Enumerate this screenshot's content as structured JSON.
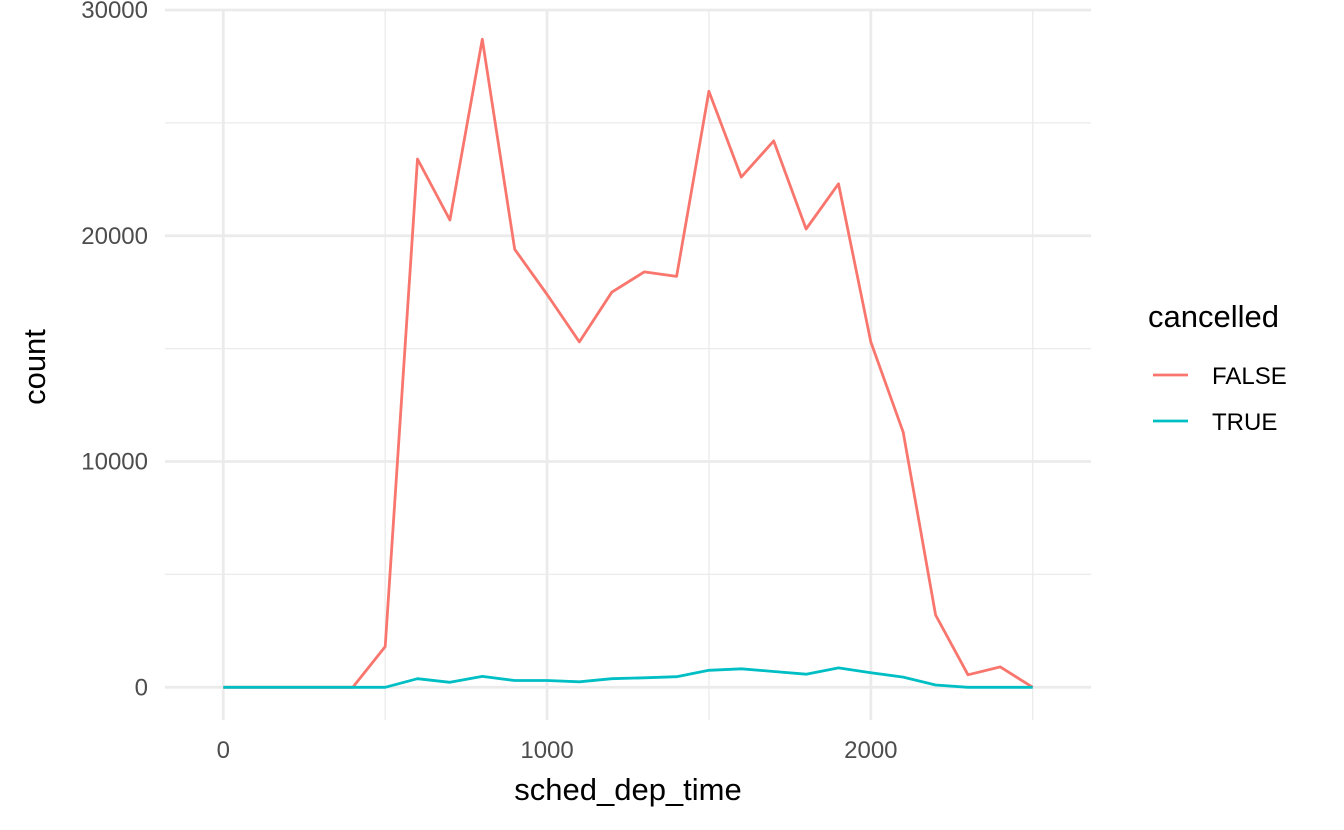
{
  "chart_data": {
    "type": "line",
    "xlabel": "sched_dep_time",
    "ylabel": "count",
    "xlim": [
      -180,
      2680
    ],
    "ylim": [
      -1450,
      30000
    ],
    "x_ticks": [
      0,
      1000,
      2000
    ],
    "x_tick_labels": [
      "0",
      "1000",
      "2000"
    ],
    "x_minor_ticks": [
      500,
      1500,
      2500
    ],
    "y_ticks": [
      0,
      10000,
      20000,
      30000
    ],
    "y_tick_labels": [
      "0",
      "10000",
      "20000",
      "30000"
    ],
    "y_minor_ticks": [
      5000,
      15000,
      25000
    ],
    "grid": true,
    "legend": {
      "title": "cancelled",
      "position": "right"
    },
    "x": [
      0,
      100,
      200,
      300,
      400,
      500,
      600,
      700,
      800,
      900,
      1000,
      1100,
      1200,
      1300,
      1400,
      1500,
      1600,
      1700,
      1800,
      1900,
      2000,
      2100,
      2200,
      2300,
      2400,
      2500
    ],
    "series": [
      {
        "name": "FALSE",
        "color": "#F8766D",
        "values": [
          0,
          0,
          0,
          0,
          0,
          1800,
          23400,
          20700,
          28700,
          19400,
          17400,
          15300,
          17500,
          18400,
          18200,
          26400,
          22600,
          24200,
          20300,
          22300,
          15300,
          11300,
          3200,
          550,
          900,
          0
        ]
      },
      {
        "name": "TRUE",
        "color": "#00BFC4",
        "values": [
          0,
          0,
          0,
          0,
          0,
          0,
          380,
          220,
          480,
          300,
          300,
          240,
          380,
          420,
          470,
          750,
          820,
          700,
          580,
          860,
          640,
          450,
          100,
          0,
          0,
          0
        ]
      }
    ]
  }
}
